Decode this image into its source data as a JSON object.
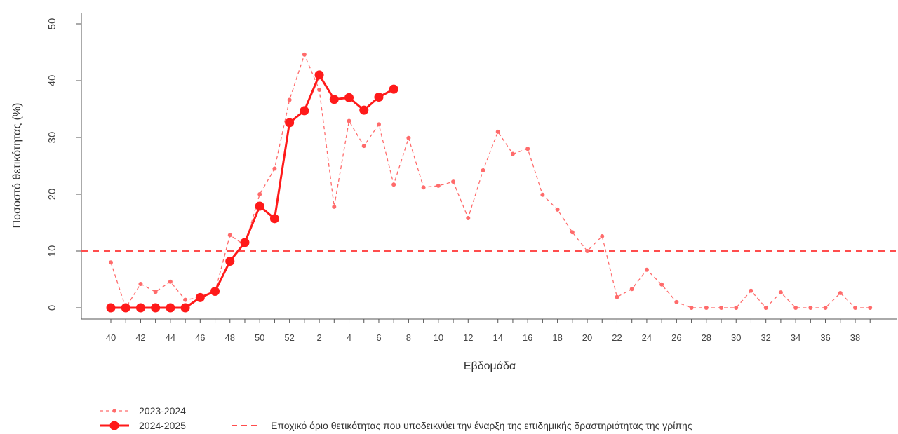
{
  "chart_data": {
    "type": "line",
    "xlabel": "Εβδομάδα",
    "ylabel": "Ποσοστό θετικότητας (%)",
    "ylim": [
      0,
      50
    ],
    "yticks": [
      0,
      10,
      20,
      30,
      40,
      50
    ],
    "x_tick_labels": [
      "40",
      "42",
      "44",
      "46",
      "48",
      "50",
      "52",
      "2",
      "4",
      "6",
      "8",
      "10",
      "12",
      "14",
      "16",
      "18",
      "20",
      "22",
      "24",
      "26",
      "28",
      "30",
      "32",
      "34",
      "36",
      "38"
    ],
    "weeks": [
      "40",
      "41",
      "42",
      "43",
      "44",
      "45",
      "46",
      "47",
      "48",
      "49",
      "50",
      "51",
      "52",
      "1",
      "2",
      "3",
      "4",
      "5",
      "6",
      "7",
      "8",
      "9",
      "10",
      "11",
      "12",
      "13",
      "14",
      "15",
      "16",
      "17",
      "18",
      "19",
      "20",
      "21",
      "22",
      "23",
      "24",
      "25",
      "26",
      "27",
      "28",
      "29",
      "30",
      "31",
      "32",
      "33",
      "34",
      "35",
      "36",
      "37",
      "38",
      "39"
    ],
    "series": [
      {
        "name": "2023-2024",
        "style": "thin dashed with small points",
        "color": "#ff6b6b",
        "values": [
          8,
          0,
          4.2,
          2.8,
          4.6,
          1.4,
          1.8,
          2.8,
          12.8,
          11,
          20,
          24.5,
          36.6,
          44.6,
          38.4,
          17.8,
          32.9,
          28.5,
          32.3,
          21.7,
          29.9,
          21.2,
          21.5,
          22.2,
          15.8,
          24.2,
          31,
          27.1,
          28,
          19.9,
          17.3,
          13.3,
          10,
          12.6,
          1.9,
          3.3,
          6.7,
          4.1,
          1,
          0,
          0,
          0,
          0,
          3,
          0,
          2.7,
          0,
          0,
          0,
          2.6,
          0,
          0
        ]
      },
      {
        "name": "2024-2025",
        "style": "bold solid with large points",
        "color": "#ff1a1a",
        "values": [
          0,
          0,
          0,
          0,
          0,
          0,
          1.8,
          2.9,
          8.2,
          11.5,
          17.9,
          15.7,
          32.6,
          34.7,
          41,
          36.7,
          37,
          34.8,
          37.1,
          38.5
        ]
      }
    ],
    "threshold": {
      "value": 10,
      "label": "Εποχικό όριο θετικότητας που υποδεικνύει την έναρξη της επιδημικής δραστηριότητας της γρίπης",
      "color": "#ff4d4d"
    },
    "grid": false,
    "legend_placement": "bottom-left"
  }
}
